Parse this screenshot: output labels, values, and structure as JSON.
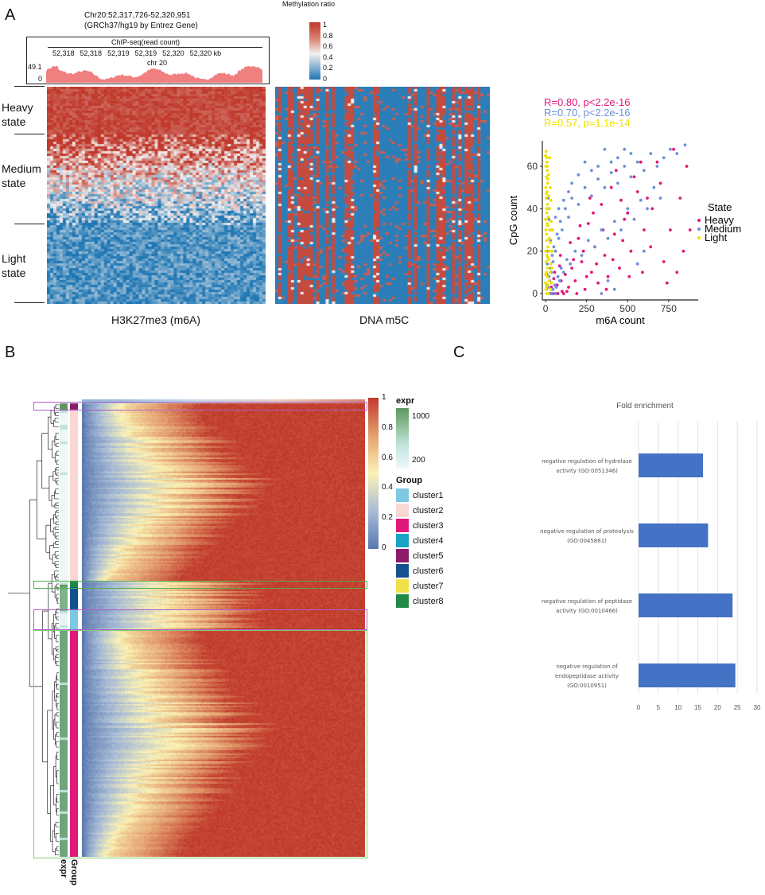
{
  "panels": {
    "a": "A",
    "b": "B",
    "c": "C"
  },
  "panel_a": {
    "locus_line1": "Chr20:52,317,726-52,320,951",
    "locus_line2": "(GRCh37/hg19 by Entrez Gene)",
    "chip_title": "ChIP-seq(read count)",
    "ruler_ticks": [
      "52,318",
      "52,318",
      "52,319",
      "52,319",
      "52,320",
      "52,320 kb"
    ],
    "chrom": "chr 20",
    "y_max": "49.1",
    "y_min": "0",
    "track_color": "#f07f7f",
    "states": [
      "Heavy\nstate",
      "Medium\nstate",
      "Light\nstate"
    ],
    "heatmap1_label": "H3K27me3 (m6A)",
    "heatmap2_label": "DNA m5C",
    "colorbar_title": "Methylation ratio",
    "colorbar_ticks": [
      "1",
      "0.8",
      "0.6",
      "0.4",
      "0.2",
      "0"
    ],
    "colors": {
      "high": "#c0392b",
      "mid": "#f4f0ef",
      "low": "#1f77b4"
    }
  },
  "panel_b": {
    "colorbar_ticks": [
      "1",
      "0.8",
      "0.6",
      "0.4",
      "0.2",
      "0"
    ],
    "expr_title": "expr",
    "expr_ticks": [
      "1000",
      "200"
    ],
    "group_title": "Group",
    "clusters": [
      {
        "name": "cluster1",
        "color": "#7ec8e3"
      },
      {
        "name": "cluster2",
        "color": "#f9d7d3"
      },
      {
        "name": "cluster3",
        "color": "#e0187a"
      },
      {
        "name": "cluster4",
        "color": "#1aa3c4"
      },
      {
        "name": "cluster5",
        "color": "#8b1a6b"
      },
      {
        "name": "cluster6",
        "color": "#144f8f"
      },
      {
        "name": "cluster7",
        "color": "#f2e04b"
      },
      {
        "name": "cluster8",
        "color": "#1f8a45"
      }
    ],
    "annot_labels": [
      "expr",
      "Group"
    ]
  },
  "chart_data": [
    {
      "type": "scatter",
      "title": "",
      "stats": [
        {
          "text": "R=0.80, p<2.2e-16",
          "color": "#e0187a"
        },
        {
          "text": "R=0.70, p<2.2e-16",
          "color": "#6f8fd8"
        },
        {
          "text": "R=0.57, p=1.1e-14",
          "color": "#f0e000"
        }
      ],
      "xlabel": "m6A count",
      "ylabel": "CpG count",
      "xticks": [
        0,
        250,
        500,
        750
      ],
      "yticks": [
        0,
        20,
        40,
        60
      ],
      "xlim": [
        -20,
        930
      ],
      "ylim": [
        -3,
        72
      ],
      "legend_title": "State",
      "legend_position": "right",
      "series": [
        {
          "name": "Heavy",
          "color": "#e0187a",
          "points": [
            [
              860,
              60
            ],
            [
              780,
              68
            ],
            [
              700,
              52
            ],
            [
              650,
              40
            ],
            [
              600,
              30
            ],
            [
              560,
              48
            ],
            [
              520,
              20
            ],
            [
              480,
              35
            ],
            [
              450,
              12
            ],
            [
              420,
              28
            ],
            [
              400,
              50
            ],
            [
              380,
              8
            ],
            [
              360,
              18
            ],
            [
              340,
              42
            ],
            [
              320,
              5
            ],
            [
              300,
              22
            ],
            [
              280,
              10
            ],
            [
              260,
              33
            ],
            [
              240,
              2
            ],
            [
              220,
              15
            ],
            [
              200,
              26
            ],
            [
              180,
              6
            ],
            [
              160,
              12
            ],
            [
              140,
              3
            ],
            [
              120,
              9
            ],
            [
              100,
              1
            ],
            [
              90,
              18
            ],
            [
              70,
              4
            ],
            [
              60,
              0
            ],
            [
              50,
              7
            ],
            [
              40,
              2
            ],
            [
              30,
              0
            ],
            [
              820,
              45
            ],
            [
              760,
              30
            ],
            [
              720,
              15
            ],
            [
              680,
              62
            ],
            [
              640,
              22
            ],
            [
              590,
              10
            ],
            [
              540,
              55
            ],
            [
              500,
              38
            ],
            [
              470,
              25
            ],
            [
              430,
              58
            ],
            [
              350,
              30
            ],
            [
              310,
              14
            ],
            [
              270,
              45
            ],
            [
              230,
              20
            ],
            [
              190,
              0
            ],
            [
              150,
              24
            ],
            [
              110,
              0
            ],
            [
              85,
              13
            ],
            [
              880,
              30
            ],
            [
              840,
              20
            ],
            [
              800,
              10
            ],
            [
              740,
              5
            ],
            [
              620,
              45
            ],
            [
              580,
              62
            ],
            [
              510,
              8
            ],
            [
              460,
              44
            ],
            [
              410,
              16
            ],
            [
              370,
              2
            ],
            [
              290,
              38
            ],
            [
              250,
              8
            ],
            [
              210,
              32
            ],
            [
              170,
              16
            ],
            [
              130,
              1
            ],
            [
              95,
              6
            ],
            [
              75,
              0
            ],
            [
              55,
              10
            ],
            [
              45,
              0
            ],
            [
              35,
              3
            ]
          ]
        },
        {
          "name": "Medium",
          "color": "#6f8fd8",
          "points": [
            [
              850,
              70
            ],
            [
              800,
              66
            ],
            [
              760,
              68
            ],
            [
              720,
              64
            ],
            [
              680,
              60
            ],
            [
              640,
              66
            ],
            [
              600,
              58
            ],
            [
              560,
              62
            ],
            [
              520,
              55
            ],
            [
              480,
              60
            ],
            [
              440,
              52
            ],
            [
              400,
              57
            ],
            [
              360,
              50
            ],
            [
              320,
              54
            ],
            [
              280,
              46
            ],
            [
              240,
              50
            ],
            [
              200,
              42
            ],
            [
              160,
              45
            ],
            [
              140,
              36
            ],
            [
              120,
              40
            ],
            [
              100,
              30
            ],
            [
              90,
              34
            ],
            [
              80,
              26
            ],
            [
              70,
              28
            ],
            [
              60,
              20
            ],
            [
              50,
              22
            ],
            [
              45,
              15
            ],
            [
              40,
              18
            ],
            [
              35,
              10
            ],
            [
              30,
              12
            ],
            [
              25,
              6
            ],
            [
              20,
              8
            ],
            [
              15,
              3
            ],
            [
              10,
              4
            ],
            [
              700,
              45
            ],
            [
              660,
              50
            ],
            [
              620,
              40
            ],
            [
              580,
              44
            ],
            [
              540,
              35
            ],
            [
              500,
              40
            ],
            [
              460,
              30
            ],
            [
              420,
              34
            ],
            [
              380,
              26
            ],
            [
              340,
              30
            ],
            [
              300,
              22
            ],
            [
              260,
              25
            ],
            [
              220,
              18
            ],
            [
              180,
              20
            ],
            [
              150,
              14
            ],
            [
              130,
              16
            ],
            [
              110,
              10
            ],
            [
              95,
              12
            ],
            [
              85,
              6
            ],
            [
              75,
              8
            ],
            [
              65,
              3
            ],
            [
              55,
              4
            ],
            [
              30,
              25
            ],
            [
              25,
              30
            ],
            [
              20,
              35
            ],
            [
              18,
              40
            ],
            [
              15,
              45
            ],
            [
              12,
              20
            ],
            [
              10,
              14
            ],
            [
              8,
              9
            ],
            [
              5,
              2
            ],
            [
              420,
              2
            ],
            [
              380,
              6
            ],
            [
              340,
              0
            ],
            [
              600,
              20
            ],
            [
              560,
              14
            ],
            [
              520,
              66
            ],
            [
              480,
              68
            ],
            [
              440,
              64
            ],
            [
              400,
              62
            ],
            [
              360,
              68
            ],
            [
              320,
              60
            ],
            [
              280,
              58
            ],
            [
              240,
              62
            ],
            [
              200,
              56
            ],
            [
              160,
              52
            ],
            [
              140,
              48
            ],
            [
              110,
              44
            ],
            [
              80,
              40
            ],
            [
              60,
              36
            ],
            [
              40,
              30
            ],
            [
              35,
              0
            ],
            [
              45,
              2
            ],
            [
              58,
              0
            ]
          ]
        },
        {
          "name": "Light",
          "color": "#f0e000",
          "points": [
            [
              0,
              65
            ],
            [
              2,
              60
            ],
            [
              4,
              55
            ],
            [
              1,
              50
            ],
            [
              3,
              45
            ],
            [
              5,
              40
            ],
            [
              0,
              35
            ],
            [
              2,
              30
            ],
            [
              6,
              25
            ],
            [
              1,
              20
            ],
            [
              3,
              15
            ],
            [
              4,
              10
            ],
            [
              0,
              5
            ],
            [
              2,
              2
            ],
            [
              5,
              0
            ],
            [
              8,
              62
            ],
            [
              10,
              58
            ],
            [
              12,
              52
            ],
            [
              9,
              48
            ],
            [
              11,
              42
            ],
            [
              7,
              38
            ],
            [
              13,
              32
            ],
            [
              6,
              28
            ],
            [
              14,
              22
            ],
            [
              8,
              18
            ],
            [
              12,
              12
            ],
            [
              10,
              8
            ],
            [
              15,
              4
            ],
            [
              16,
              0
            ],
            [
              18,
              56
            ],
            [
              20,
              46
            ],
            [
              17,
              36
            ],
            [
              22,
              26
            ],
            [
              19,
              16
            ],
            [
              21,
              6
            ],
            [
              25,
              64
            ],
            [
              28,
              50
            ],
            [
              24,
              40
            ],
            [
              26,
              30
            ],
            [
              23,
              20
            ],
            [
              27,
              10
            ],
            [
              30,
              2
            ],
            [
              32,
              44
            ],
            [
              34,
              34
            ],
            [
              29,
              24
            ],
            [
              31,
              14
            ],
            [
              35,
              5
            ],
            [
              3,
              67
            ],
            [
              7,
              64
            ],
            [
              11,
              60
            ],
            [
              14,
              54
            ],
            [
              5,
              47
            ],
            [
              9,
              33
            ],
            [
              13,
              17
            ],
            [
              1,
              9
            ],
            [
              4,
              3
            ],
            [
              40,
              20
            ],
            [
              38,
              12
            ],
            [
              42,
              30
            ]
          ]
        }
      ]
    },
    {
      "type": "bar",
      "title": "Fold enrichment",
      "orientation": "horizontal",
      "categories": [
        "negative regulation of hydrolase activity (GO:0051346)",
        "negative regulation of proteolysis (GO:0045861)",
        "negative regulation of peptidase activity (GO:0010466)",
        "negative regulation of endopeptidase activity (GO:0010951)"
      ],
      "category_lines": [
        [
          "negative regulation of hydrolase",
          "activity (GO:0051346)"
        ],
        [
          "negative regulation of proteolysis",
          "(GO:0045861)"
        ],
        [
          "negative regulation of peptidase",
          "activity (GO:0010466)"
        ],
        [
          "negative regulation of",
          "endopeptidase activity",
          "(GO:0010951)"
        ]
      ],
      "values": [
        16.3,
        17.6,
        23.8,
        24.5
      ],
      "xticks": [
        0,
        5,
        10,
        15,
        20,
        25,
        30
      ],
      "xlim": [
        0,
        30
      ],
      "color": "#4472c4"
    }
  ]
}
